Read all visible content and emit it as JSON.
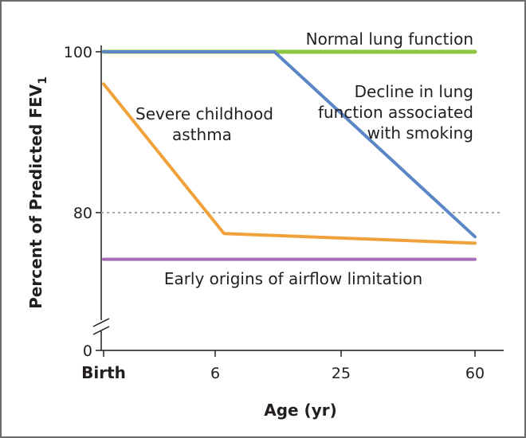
{
  "chart_data": {
    "type": "line",
    "title": "",
    "xlabel": "Age (yr)",
    "ylabel": "Percent of Predicted FEV",
    "ylabel_subscript": "1",
    "x_categories": [
      "Birth",
      "6",
      "25",
      "60"
    ],
    "x_category_index": {
      "Birth": 0,
      "6": 1,
      "25": 2,
      "60": 3
    },
    "yticks": [
      "100",
      "80",
      "0"
    ],
    "ylim": [
      0,
      100
    ],
    "y_axis_break": true,
    "reference_line_y": 80,
    "series": [
      {
        "name": "Normal lung function",
        "color": "#8cc63f",
        "points": [
          [
            0,
            100
          ],
          [
            3,
            100
          ]
        ]
      },
      {
        "name": "Decline in lung function associated with smoking",
        "label_lines": [
          "Decline in lung",
          "function associated",
          "with smoking"
        ],
        "color": "#5b86c5",
        "points": [
          [
            0,
            100
          ],
          [
            1.47,
            100
          ],
          [
            3,
            77
          ]
        ]
      },
      {
        "name": "Severe childhood asthma",
        "label_lines": [
          "Severe childhood",
          "asthma"
        ],
        "color": "#f0a23a",
        "points": [
          [
            0,
            96
          ],
          [
            1.07,
            77.4
          ],
          [
            3,
            76.2
          ]
        ]
      },
      {
        "name": "Early origins of airflow limitation",
        "color": "#a66fb5",
        "points": [
          [
            0,
            74.2
          ],
          [
            3,
            74.2
          ]
        ]
      }
    ]
  }
}
